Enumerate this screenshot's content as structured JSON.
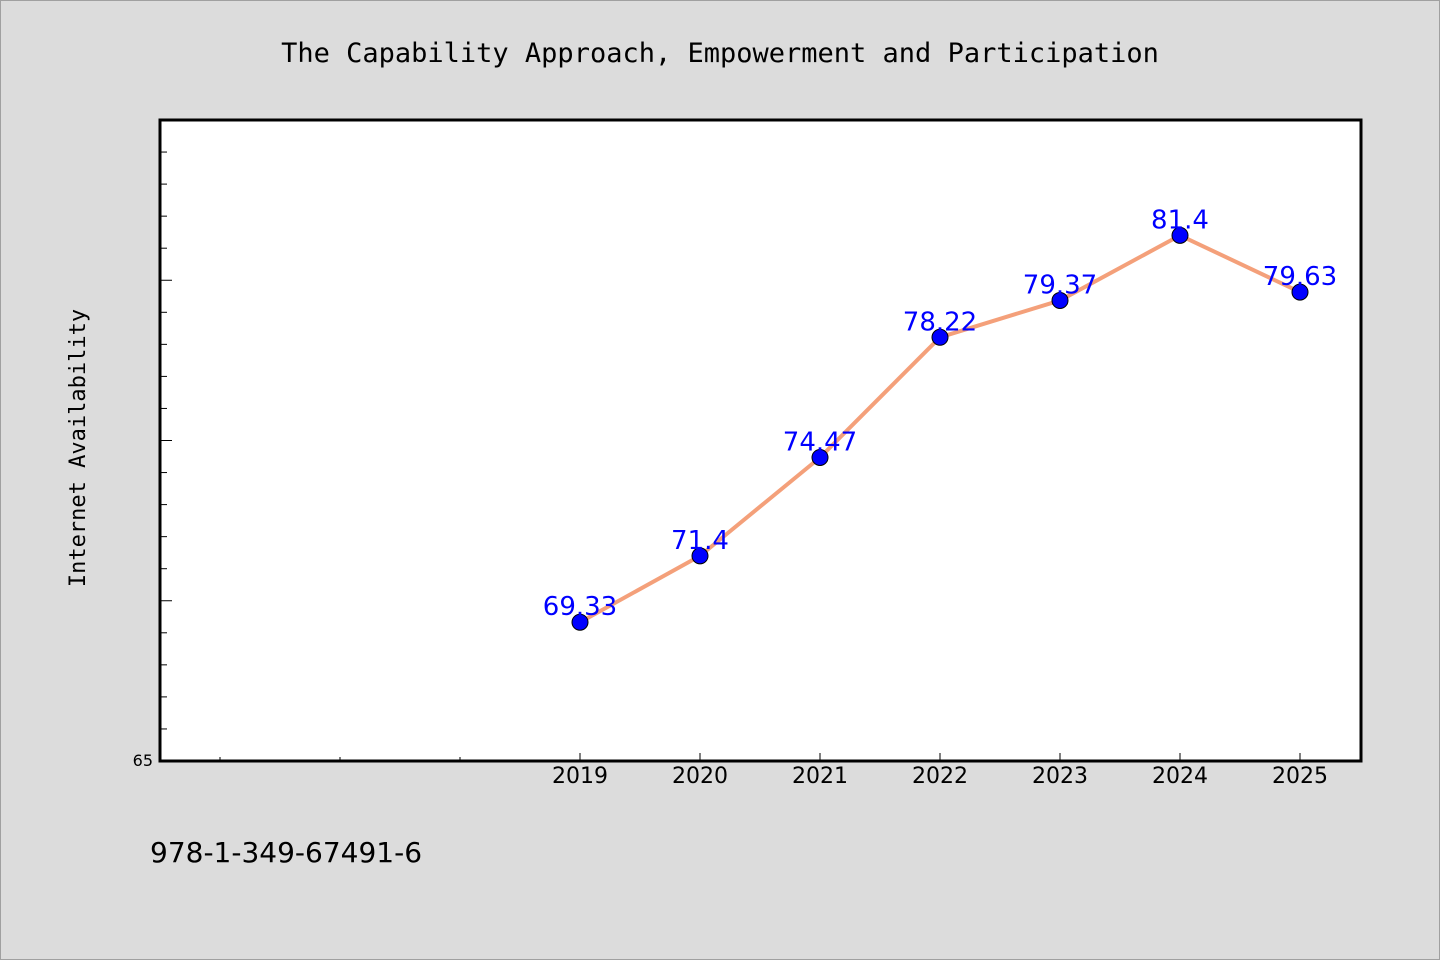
{
  "chart_data": {
    "type": "line",
    "title": "The Capability Approach, Empowerment and Participation",
    "ylabel": "Internet Availability",
    "x": [
      "2019",
      "2020",
      "2021",
      "2022",
      "2023",
      "2024",
      "2025"
    ],
    "series": [
      {
        "values": [
          69.33,
          71.4,
          74.47,
          78.22,
          79.37,
          81.4,
          79.63
        ]
      }
    ],
    "ylim": [
      65,
      85
    ],
    "ymin_label": "65",
    "data_labels": [
      "69.33",
      "71.4",
      "74.47",
      "78.22",
      "79.37",
      "81.4",
      "79.63"
    ],
    "grid": false,
    "colors": {
      "line": "#f4a07a",
      "marker": "#0000ff",
      "label": "#0000ff",
      "background": "#dcdcdc",
      "plot_area": "#ffffff"
    }
  },
  "footer": {
    "isbn": "978-1-349-67491-6"
  }
}
